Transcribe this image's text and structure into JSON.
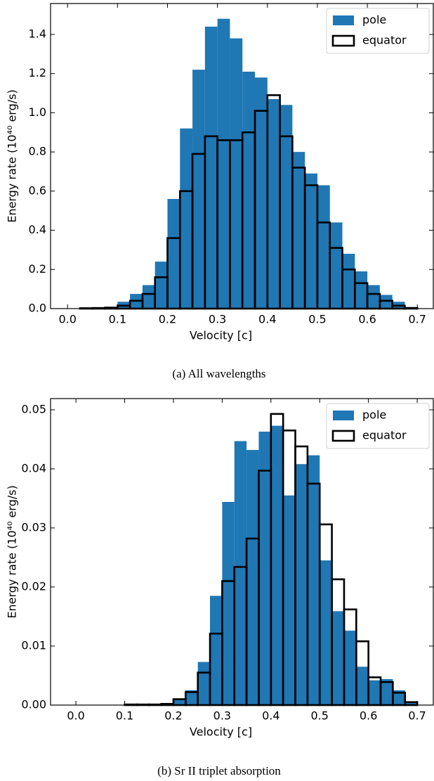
{
  "chart_data": [
    {
      "type": "histogram",
      "caption": "(a) All wavelengths",
      "xlabel": "Velocity [c]",
      "ylabel": "Energy rate (10⁴⁰ erg/s)",
      "bins": [
        0,
        0.025,
        0.05,
        0.075,
        0.1,
        0.125,
        0.15,
        0.175,
        0.2,
        0.225,
        0.25,
        0.275,
        0.3,
        0.325,
        0.35,
        0.375,
        0.4,
        0.425,
        0.45,
        0.475,
        0.5,
        0.525,
        0.55,
        0.575,
        0.6,
        0.625,
        0.65,
        0.675,
        0.7
      ],
      "series": [
        {
          "name": "pole",
          "color": "#1f77b4",
          "filled": true,
          "values": [
            0,
            0.002,
            0.003,
            0.008,
            0.035,
            0.075,
            0.12,
            0.24,
            0.56,
            0.92,
            1.22,
            1.44,
            1.48,
            1.38,
            1.21,
            1.18,
            1.07,
            1.04,
            0.8,
            0.69,
            0.63,
            0.44,
            0.28,
            0.19,
            0.12,
            0.07,
            0.035,
            0.008
          ]
        },
        {
          "name": "equator",
          "color": "#000000",
          "filled": false,
          "values": [
            0,
            0.002,
            0.003,
            0.005,
            0.015,
            0.04,
            0.075,
            0.16,
            0.36,
            0.6,
            0.79,
            0.88,
            0.86,
            0.86,
            0.9,
            1.01,
            1.09,
            0.88,
            0.72,
            0.63,
            0.44,
            0.31,
            0.2,
            0.13,
            0.075,
            0.04,
            0.015,
            0.003
          ]
        }
      ],
      "xlim": [
        -0.034,
        0.732
      ],
      "ylim": [
        0,
        1.558
      ],
      "xticks": [
        {
          "value": 0,
          "label": "0.0"
        },
        0.1,
        0.2,
        0.3,
        0.4,
        0.5,
        0.6,
        0.7
      ],
      "yticks": [
        {
          "value": 0,
          "label": "0.0"
        },
        0.2,
        0.4,
        0.6,
        0.8,
        {
          "value": 1,
          "label": "1.0"
        },
        1.2,
        1.4
      ],
      "legend": "upper right"
    },
    {
      "type": "histogram",
      "caption": "(b) Sr II triplet absorption",
      "xlabel": "Velocity [c]",
      "ylabel": "Energy rate (10⁴⁰ erg/s)",
      "bins": [
        0,
        0.025,
        0.05,
        0.075,
        0.1,
        0.125,
        0.15,
        0.175,
        0.2,
        0.225,
        0.25,
        0.275,
        0.3,
        0.325,
        0.35,
        0.375,
        0.4,
        0.425,
        0.45,
        0.475,
        0.5,
        0.525,
        0.55,
        0.575,
        0.6,
        0.625,
        0.65,
        0.675,
        0.7
      ],
      "series": [
        {
          "name": "pole",
          "color": "#1f77b4",
          "filled": true,
          "values": [
            0,
            0,
            0,
            0,
            0.0001,
            0.0001,
            0.0001,
            0.0003,
            0.001,
            0.0025,
            0.0073,
            0.0185,
            0.0344,
            0.0447,
            0.0432,
            0.0463,
            0.0473,
            0.0355,
            0.0408,
            0.0423,
            0.0245,
            0.0159,
            0.0126,
            0.0065,
            0.0042,
            0.0044,
            0.0025,
            0.0006
          ]
        },
        {
          "name": "equator",
          "color": "#000000",
          "filled": false,
          "values": [
            0,
            0,
            0,
            0,
            0.0001,
            0.0001,
            0.0001,
            0.0002,
            0.001,
            0.0022,
            0.0055,
            0.0121,
            0.021,
            0.0234,
            0.0282,
            0.0397,
            0.0493,
            0.0465,
            0.0438,
            0.0375,
            0.0306,
            0.0213,
            0.0162,
            0.0108,
            0.0047,
            0.0039,
            0.0021,
            0.0005
          ]
        }
      ],
      "xlim": [
        -0.052,
        0.733
      ],
      "ylim": [
        0,
        0.0519
      ],
      "xticks": [
        {
          "value": 0,
          "label": "0.0"
        },
        0.1,
        0.2,
        0.3,
        0.4,
        0.5,
        0.6,
        0.7
      ],
      "yticks": [
        {
          "value": 0,
          "label": "0.00"
        },
        0.01,
        0.02,
        0.03,
        0.04,
        0.05
      ],
      "legend": "upper right"
    }
  ]
}
